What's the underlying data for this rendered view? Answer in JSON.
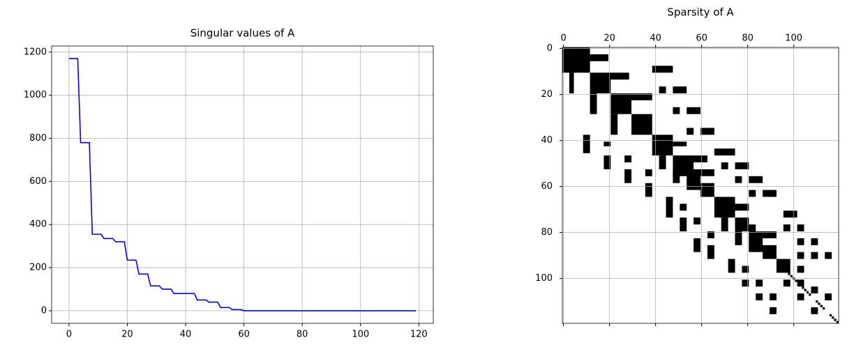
{
  "chart_data": [
    {
      "type": "line",
      "title": "Singular values of A",
      "color": "#0000ff",
      "grid": true,
      "x": [
        0,
        1,
        2,
        3,
        4,
        5,
        6,
        7,
        8,
        9,
        10,
        11,
        12,
        13,
        14,
        15,
        16,
        17,
        18,
        19,
        20,
        21,
        22,
        23,
        24,
        25,
        26,
        27,
        28,
        29,
        30,
        31,
        32,
        33,
        34,
        35,
        36,
        37,
        38,
        39,
        40,
        41,
        42,
        43,
        44,
        45,
        46,
        47,
        48,
        49,
        50,
        51,
        52,
        53,
        54,
        55,
        56,
        57,
        58,
        59,
        60,
        61,
        62,
        63,
        64,
        65,
        66,
        67,
        68,
        69,
        70,
        71,
        72,
        73,
        74,
        75,
        76,
        77,
        78,
        79,
        80,
        81,
        82,
        83,
        84,
        85,
        86,
        87,
        88,
        89,
        90,
        91,
        92,
        93,
        94,
        95,
        96,
        97,
        98,
        99,
        100,
        101,
        102,
        103,
        104,
        105,
        106,
        107,
        108,
        109,
        110,
        111,
        112,
        113,
        114,
        115,
        116,
        117,
        118,
        119
      ],
      "values": [
        1170,
        1170,
        1170,
        1170,
        780,
        780,
        780,
        780,
        355,
        355,
        355,
        355,
        335,
        335,
        335,
        335,
        320,
        320,
        320,
        320,
        235,
        235,
        235,
        235,
        170,
        170,
        170,
        170,
        115,
        115,
        115,
        115,
        100,
        100,
        100,
        100,
        80,
        80,
        80,
        80,
        80,
        80,
        80,
        80,
        50,
        50,
        50,
        50,
        40,
        40,
        40,
        40,
        15,
        15,
        15,
        15,
        5,
        5,
        5,
        5,
        0,
        0,
        0,
        0,
        0,
        0,
        0,
        0,
        0,
        0,
        0,
        0,
        0,
        0,
        0,
        0,
        0,
        0,
        0,
        0,
        0,
        0,
        0,
        0,
        0,
        0,
        0,
        0,
        0,
        0,
        0,
        0,
        0,
        0,
        0,
        0,
        0,
        0,
        0,
        0,
        0,
        0,
        0,
        0,
        0,
        0,
        0,
        0,
        0,
        0,
        0,
        0,
        0,
        0,
        0,
        0,
        0,
        0,
        0,
        0
      ],
      "xlim": [
        -5.95,
        124.95
      ],
      "xticks": [
        0,
        20,
        40,
        60,
        80,
        100,
        120
      ],
      "ylim": [
        -58.5,
        1228.5
      ],
      "yticks": [
        0,
        200,
        400,
        600,
        800,
        1000,
        1200
      ]
    },
    {
      "type": "spy",
      "title": "Sparsity of A",
      "color": "#000000",
      "grid": true,
      "xlim": [
        -0.5,
        119.5
      ],
      "xticks": [
        0,
        20,
        40,
        60,
        80,
        100
      ],
      "ylim": [
        -0.5,
        119.5
      ],
      "yticks": [
        0,
        20,
        40,
        60,
        80,
        100
      ],
      "blocks": [
        {
          "row": 0,
          "col": 0,
          "height": 11,
          "width": 12
        },
        {
          "row": 3,
          "col": 12,
          "height": 3,
          "width": 8
        },
        {
          "row": 11,
          "col": 3,
          "height": 9,
          "width": 2
        },
        {
          "row": 11,
          "col": 12,
          "height": 9,
          "width": 9
        },
        {
          "row": 11,
          "col": 20,
          "height": 3,
          "width": 9
        },
        {
          "row": 8,
          "col": 39,
          "height": 3,
          "width": 9
        },
        {
          "row": 17,
          "col": 42,
          "height": 3,
          "width": 3
        },
        {
          "row": 17,
          "col": 48,
          "height": 3,
          "width": 6
        },
        {
          "row": 20,
          "col": 12,
          "height": 9,
          "width": 3
        },
        {
          "row": 20,
          "col": 21,
          "height": 9,
          "width": 9
        },
        {
          "row": 20,
          "col": 30,
          "height": 3,
          "width": 9
        },
        {
          "row": 26,
          "col": 48,
          "height": 3,
          "width": 3
        },
        {
          "row": 26,
          "col": 54,
          "height": 3,
          "width": 6
        },
        {
          "row": 29,
          "col": 21,
          "height": 9,
          "width": 3
        },
        {
          "row": 29,
          "col": 30,
          "height": 9,
          "width": 9
        },
        {
          "row": 35,
          "col": 54,
          "height": 3,
          "width": 3
        },
        {
          "row": 35,
          "col": 60,
          "height": 3,
          "width": 6
        },
        {
          "row": 38,
          "col": 9,
          "height": 8,
          "width": 3
        },
        {
          "row": 41,
          "col": 18,
          "height": 2,
          "width": 3
        },
        {
          "row": 38,
          "col": 39,
          "height": 9,
          "width": 9
        },
        {
          "row": 41,
          "col": 48,
          "height": 2,
          "width": 6
        },
        {
          "row": 44,
          "col": 66,
          "height": 3,
          "width": 9
        },
        {
          "row": 47,
          "col": 18,
          "height": 6,
          "width": 3
        },
        {
          "row": 47,
          "col": 27,
          "height": 3,
          "width": 3
        },
        {
          "row": 47,
          "col": 42,
          "height": 6,
          "width": 3
        },
        {
          "row": 47,
          "col": 48,
          "height": 9,
          "width": 9
        },
        {
          "row": 47,
          "col": 57,
          "height": 3,
          "width": 6
        },
        {
          "row": 50,
          "col": 69,
          "height": 3,
          "width": 3
        },
        {
          "row": 50,
          "col": 75,
          "height": 3,
          "width": 6
        },
        {
          "row": 53,
          "col": 27,
          "height": 6,
          "width": 3
        },
        {
          "row": 53,
          "col": 36,
          "height": 3,
          "width": 3
        },
        {
          "row": 53,
          "col": 48,
          "height": 6,
          "width": 3
        },
        {
          "row": 53,
          "col": 54,
          "height": 9,
          "width": 6
        },
        {
          "row": 53,
          "col": 60,
          "height": 3,
          "width": 6
        },
        {
          "row": 56,
          "col": 75,
          "height": 3,
          "width": 3
        },
        {
          "row": 56,
          "col": 81,
          "height": 3,
          "width": 6
        },
        {
          "row": 59,
          "col": 36,
          "height": 6,
          "width": 3
        },
        {
          "row": 59,
          "col": 60,
          "height": 6,
          "width": 6
        },
        {
          "row": 62,
          "col": 81,
          "height": 3,
          "width": 3
        },
        {
          "row": 62,
          "col": 87,
          "height": 3,
          "width": 6
        },
        {
          "row": 65,
          "col": 45,
          "height": 9,
          "width": 3
        },
        {
          "row": 65,
          "col": 66,
          "height": 9,
          "width": 9
        },
        {
          "row": 68,
          "col": 75,
          "height": 3,
          "width": 6
        },
        {
          "row": 68,
          "col": 51,
          "height": 3,
          "width": 3
        },
        {
          "row": 71,
          "col": 96,
          "height": 3,
          "width": 6
        },
        {
          "row": 74,
          "col": 51,
          "height": 6,
          "width": 3
        },
        {
          "row": 74,
          "col": 57,
          "height": 3,
          "width": 3
        },
        {
          "row": 74,
          "col": 69,
          "height": 6,
          "width": 3
        },
        {
          "row": 74,
          "col": 75,
          "height": 6,
          "width": 6
        },
        {
          "row": 77,
          "col": 81,
          "height": 3,
          "width": 3
        },
        {
          "row": 77,
          "col": 96,
          "height": 3,
          "width": 3
        },
        {
          "row": 77,
          "col": 102,
          "height": 3,
          "width": 3
        },
        {
          "row": 80,
          "col": 63,
          "height": 3,
          "width": 3
        },
        {
          "row": 80,
          "col": 75,
          "height": 6,
          "width": 3
        },
        {
          "row": 80,
          "col": 81,
          "height": 9,
          "width": 6
        },
        {
          "row": 80,
          "col": 87,
          "height": 3,
          "width": 6
        },
        {
          "row": 83,
          "col": 57,
          "height": 6,
          "width": 3
        },
        {
          "row": 83,
          "col": 102,
          "height": 3,
          "width": 3
        },
        {
          "row": 83,
          "col": 108,
          "height": 3,
          "width": 3
        },
        {
          "row": 86,
          "col": 63,
          "height": 6,
          "width": 3
        },
        {
          "row": 86,
          "col": 87,
          "height": 6,
          "width": 6
        },
        {
          "row": 89,
          "col": 102,
          "height": 3,
          "width": 3
        },
        {
          "row": 89,
          "col": 108,
          "height": 3,
          "width": 3
        },
        {
          "row": 89,
          "col": 114,
          "height": 3,
          "width": 3
        },
        {
          "row": 92,
          "col": 72,
          "height": 6,
          "width": 3
        },
        {
          "row": 92,
          "col": 93,
          "height": 6,
          "width": 6
        },
        {
          "row": 95,
          "col": 78,
          "height": 3,
          "width": 3
        },
        {
          "row": 95,
          "col": 102,
          "height": 3,
          "width": 3
        },
        {
          "row": 101,
          "col": 78,
          "height": 3,
          "width": 3
        },
        {
          "row": 101,
          "col": 84,
          "height": 3,
          "width": 3
        },
        {
          "row": 101,
          "col": 96,
          "height": 3,
          "width": 3
        },
        {
          "row": 101,
          "col": 102,
          "height": 3,
          "width": 3
        },
        {
          "row": 104,
          "col": 108,
          "height": 3,
          "width": 3
        },
        {
          "row": 107,
          "col": 84,
          "height": 3,
          "width": 3
        },
        {
          "row": 107,
          "col": 90,
          "height": 3,
          "width": 3
        },
        {
          "row": 107,
          "col": 102,
          "height": 3,
          "width": 3
        },
        {
          "row": 107,
          "col": 114,
          "height": 3,
          "width": 3
        },
        {
          "row": 113,
          "col": 90,
          "height": 3,
          "width": 3
        },
        {
          "row": 113,
          "col": 108,
          "height": 3,
          "width": 3
        },
        {
          "row": 99,
          "col": 99,
          "height": 1,
          "width": 1
        },
        {
          "row": 100,
          "col": 100,
          "height": 1,
          "width": 1
        },
        {
          "row": 101,
          "col": 101,
          "height": 1,
          "width": 1
        },
        {
          "row": 104,
          "col": 104,
          "height": 1,
          "width": 1
        },
        {
          "row": 105,
          "col": 105,
          "height": 1,
          "width": 1
        },
        {
          "row": 106,
          "col": 106,
          "height": 1,
          "width": 1
        },
        {
          "row": 107,
          "col": 107,
          "height": 1,
          "width": 1
        },
        {
          "row": 110,
          "col": 110,
          "height": 1,
          "width": 1
        },
        {
          "row": 111,
          "col": 111,
          "height": 1,
          "width": 1
        },
        {
          "row": 112,
          "col": 112,
          "height": 1,
          "width": 1
        },
        {
          "row": 113,
          "col": 113,
          "height": 1,
          "width": 1
        },
        {
          "row": 116,
          "col": 116,
          "height": 1,
          "width": 1
        },
        {
          "row": 117,
          "col": 117,
          "height": 1,
          "width": 1
        },
        {
          "row": 118,
          "col": 118,
          "height": 1,
          "width": 1
        },
        {
          "row": 119,
          "col": 119,
          "height": 1,
          "width": 1
        },
        {
          "row": 98,
          "col": 98,
          "height": 1,
          "width": 1
        },
        {
          "row": 97,
          "col": 97,
          "height": 1,
          "width": 1
        },
        {
          "row": 96,
          "col": 96,
          "height": 1,
          "width": 1
        }
      ]
    }
  ]
}
